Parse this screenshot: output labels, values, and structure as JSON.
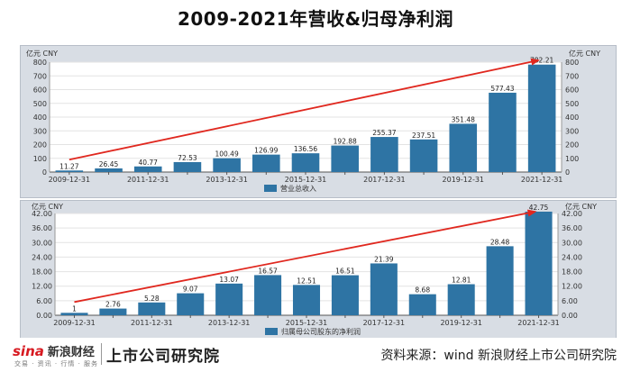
{
  "page": {
    "title": "2009-2021年营收&归母净利润",
    "source": "资料来源：wind 新浪财经上市公司研究院",
    "brand_logo": "sina",
    "brand_logo_cn": "新浪财经",
    "brand_sub": "交易 · 资讯 · 行情 · 服务",
    "brand_name": "上市公司研究院",
    "colors": {
      "bar": "#2e74a4",
      "arrow": "#e0281f",
      "panel_bg": "#d8dde4",
      "plot_bg": "#ffffff"
    }
  },
  "chart_data": [
    {
      "type": "bar",
      "unit": "亿元 CNY",
      "legend": "营业总收入",
      "legend_position": "bottom-center",
      "grid": true,
      "categories": [
        "2009-12-31",
        "2010-12-31",
        "2011-12-31",
        "2012-12-31",
        "2013-12-31",
        "2014-12-31",
        "2015-12-31",
        "2016-12-31",
        "2017-12-31",
        "2018-12-31",
        "2019-12-31",
        "2020-12-31",
        "2021-12-31"
      ],
      "x_tick_labels": [
        "2009-12-31",
        "",
        "2011-12-31",
        "",
        "2013-12-31",
        "",
        "2015-12-31",
        "",
        "2017-12-31",
        "",
        "2019-12-31",
        "",
        "2021-12-31"
      ],
      "values": [
        11.27,
        26.45,
        40.77,
        72.53,
        100.49,
        126.99,
        136.56,
        192.88,
        255.37,
        237.51,
        351.48,
        577.43,
        782.21
      ],
      "value_labels": [
        "11.27",
        "26.45",
        "40.77",
        "72.53",
        "100.49",
        "126.99",
        "136.56",
        "192.88",
        "255.37",
        "237.51",
        "351.48",
        "577.43",
        "782.21"
      ],
      "ylim": [
        0,
        800
      ],
      "y_ticks": [
        0,
        100,
        200,
        300,
        400,
        500,
        600,
        700,
        800
      ],
      "y_tick_labels": [
        "0",
        "100",
        "200",
        "300",
        "400",
        "500",
        "600",
        "700",
        "800"
      ]
    },
    {
      "type": "bar",
      "unit": "亿元 CNY",
      "legend": "归属母公司股东的净利润",
      "legend_position": "bottom-center",
      "grid": true,
      "categories": [
        "2009-12-31",
        "2010-12-31",
        "2011-12-31",
        "2012-12-31",
        "2013-12-31",
        "2014-12-31",
        "2015-12-31",
        "2016-12-31",
        "2017-12-31",
        "2018-12-31",
        "2019-12-31",
        "2020-12-31",
        "2021-12-31"
      ],
      "x_tick_labels": [
        "2009-12-31",
        "",
        "2011-12-31",
        "",
        "2013-12-31",
        "",
        "2015-12-31",
        "",
        "2017-12-31",
        "",
        "2019-12-31",
        "",
        "2021-12-31"
      ],
      "values": [
        1,
        2.76,
        5.28,
        9.07,
        13.07,
        16.57,
        12.51,
        16.51,
        21.39,
        8.68,
        12.81,
        28.48,
        42.75
      ],
      "value_labels": [
        "1",
        "2.76",
        "5.28",
        "9.07",
        "13.07",
        "16.57",
        "12.51",
        "16.51",
        "21.39",
        "8.68",
        "12.81",
        "28.48",
        "42.75"
      ],
      "ylim": [
        0,
        42
      ],
      "y_ticks": [
        0,
        6,
        12,
        18,
        24,
        30,
        36,
        42
      ],
      "y_tick_labels": [
        "0.00",
        "6.00",
        "12.00",
        "18.00",
        "24.00",
        "30.00",
        "36.00",
        "42.00"
      ]
    }
  ]
}
